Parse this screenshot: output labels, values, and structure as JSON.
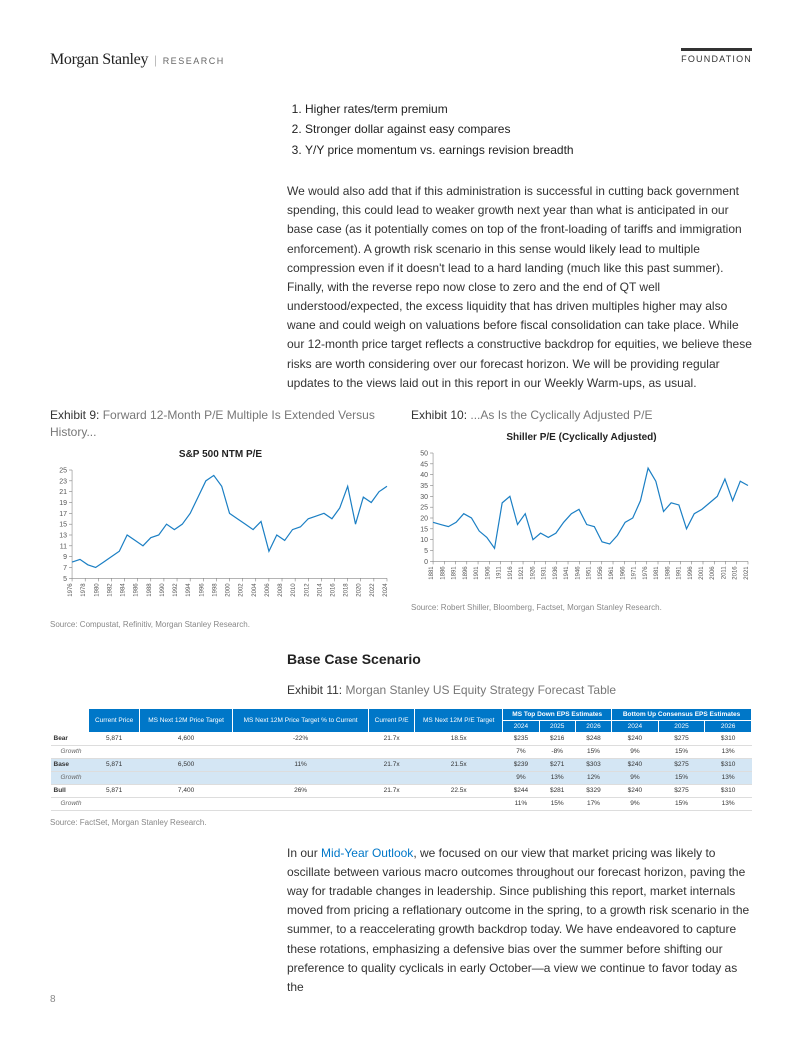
{
  "header": {
    "brand": "Morgan Stanley",
    "brand_sub": "RESEARCH",
    "right": "FOUNDATION"
  },
  "list": {
    "items": [
      "Higher rates/term premium",
      "Stronger dollar against easy compares",
      "Y/Y price momentum vs. earnings revision breadth"
    ]
  },
  "para1": "We would also add that if this administration is successful in cutting back government spending, this could lead to weaker growth next year than what is anticipated in our base case (as it potentially comes on top of the front-loading of tariffs and immigration enforcement). A growth risk scenario in this sense would likely lead to multiple compression even if it doesn't lead to a hard landing (much like this past summer). Finally, with the reverse repo now close to zero and the end of QT well understood/expected, the excess liquidity that has driven multiples higher may also wane and could weigh on valuations before fiscal consolidation can take place. While our 12-month price target reflects a constructive backdrop for equities, we believe these risks are worth considering over our forecast horizon. We will be providing regular updates to the views laid out in this report in our Weekly Warm-ups, as usual.",
  "exhibit9": {
    "label": "Exhibit 9:",
    "title": "Forward 12-Month P/E Multiple Is Extended Versus History...",
    "chart_title": "S&P 500 NTM P/E",
    "line_color": "#1b7fc4",
    "axis_color": "#666",
    "yaxis": {
      "min": 5,
      "max": 25,
      "ticks": [
        5,
        7,
        9,
        11,
        13,
        15,
        17,
        19,
        21,
        23,
        25
      ]
    },
    "xaxis": {
      "labels": [
        "1976",
        "1978",
        "1980",
        "1982",
        "1984",
        "1986",
        "1988",
        "1990",
        "1992",
        "1994",
        "1996",
        "1998",
        "2000",
        "2002",
        "2004",
        "2006",
        "2008",
        "2010",
        "2012",
        "2014",
        "2016",
        "2018",
        "2020",
        "2022",
        "2024"
      ]
    },
    "series": [
      8,
      8.5,
      7.5,
      7,
      8,
      9,
      10,
      13,
      12,
      11,
      12.5,
      13,
      15,
      14,
      15,
      17,
      20,
      23,
      24,
      22,
      17,
      16,
      15,
      14,
      15.5,
      10,
      13,
      12,
      14,
      14.5,
      16,
      16.5,
      17,
      16,
      18,
      22,
      15,
      20,
      19,
      21,
      22
    ],
    "source": "Source: Compustat, Refinitiv, Morgan Stanley Research."
  },
  "exhibit10": {
    "label": "Exhibit 10:",
    "title": "...As Is the Cyclically Adjusted P/E",
    "chart_title": "Shiller P/E (Cyclically Adjusted)",
    "line_color": "#1b7fc4",
    "axis_color": "#666",
    "yaxis": {
      "min": 0,
      "max": 50,
      "ticks": [
        0,
        5,
        10,
        15,
        20,
        25,
        30,
        35,
        40,
        45,
        50
      ]
    },
    "xaxis": {
      "labels": [
        "1881",
        "1886",
        "1891",
        "1896",
        "1901",
        "1906",
        "1911",
        "1916",
        "1921",
        "1926",
        "1931",
        "1936",
        "1941",
        "1946",
        "1951",
        "1956",
        "1961",
        "1966",
        "1971",
        "1976",
        "1981",
        "1986",
        "1991",
        "1996",
        "2001",
        "2006",
        "2011",
        "2016",
        "2021"
      ]
    },
    "series": [
      18,
      17,
      16,
      18,
      22,
      20,
      14,
      11,
      6,
      27,
      30,
      17,
      22,
      10,
      13,
      11,
      13,
      18,
      22,
      24,
      17,
      16,
      9,
      8,
      12,
      18,
      20,
      28,
      43,
      37,
      23,
      27,
      26,
      15,
      22,
      24,
      27,
      30,
      38,
      28,
      37,
      35
    ],
    "source": "Source: Robert Shiller, Bloomberg, Factset, Morgan Stanley Research."
  },
  "section": {
    "heading": "Base Case Scenario",
    "exhibit11_label": "Exhibit 11:",
    "exhibit11_title": "Morgan Stanley US Equity Strategy Forecast Table"
  },
  "table": {
    "group_headers": [
      "",
      "MS Top Down EPS Estimates",
      "Bottom Up Consensus EPS Estimates"
    ],
    "headers": [
      "",
      "Current Price",
      "MS Next 12M Price Target",
      "MS Next 12M Price Target % to Current",
      "Current P/E",
      "MS Next 12M P/E Target",
      "2024",
      "2025",
      "2026",
      "2024",
      "2025",
      "2026"
    ],
    "rows": [
      {
        "label": "Bear",
        "cells": [
          "5,871",
          "4,600",
          "-22%",
          "21.7x",
          "18.5x",
          "$235",
          "$216",
          "$248",
          "$240",
          "$275",
          "$310"
        ]
      },
      {
        "sub": "Growth",
        "cells": [
          "",
          "",
          "",
          "",
          "",
          "7%",
          "-8%",
          "15%",
          "9%",
          "15%",
          "13%"
        ]
      },
      {
        "label": "Base",
        "highlight": true,
        "cells": [
          "5,871",
          "6,500",
          "11%",
          "21.7x",
          "21.5x",
          "$239",
          "$271",
          "$303",
          "$240",
          "$275",
          "$310"
        ]
      },
      {
        "sub": "Growth",
        "highlight": true,
        "cells": [
          "",
          "",
          "",
          "",
          "",
          "9%",
          "13%",
          "12%",
          "9%",
          "15%",
          "13%"
        ]
      },
      {
        "label": "Bull",
        "cells": [
          "5,871",
          "7,400",
          "26%",
          "21.7x",
          "22.5x",
          "$244",
          "$281",
          "$329",
          "$240",
          "$275",
          "$310"
        ]
      },
      {
        "sub": "Growth",
        "cells": [
          "",
          "",
          "",
          "",
          "",
          "11%",
          "15%",
          "17%",
          "9%",
          "15%",
          "13%"
        ]
      }
    ],
    "source": "Source: FactSet, Morgan Stanley Research."
  },
  "para2_pre": "In our ",
  "para2_link": "Mid-Year Outlook",
  "para2_post": ", we focused on our view that market pricing was likely to oscillate between various macro outcomes throughout our forecast horizon, paving the way for tradable changes in leadership. Since publishing this report, market internals moved from pricing a reflationary outcome in the spring, to a growth risk scenario in the summer, to a reaccelerating growth backdrop today. We have endeavored to capture these rotations, emphasizing a defensive bias over the summer before shifting our preference to quality cyclicals in early October—a view we continue to favor today as the",
  "page_num": "8"
}
